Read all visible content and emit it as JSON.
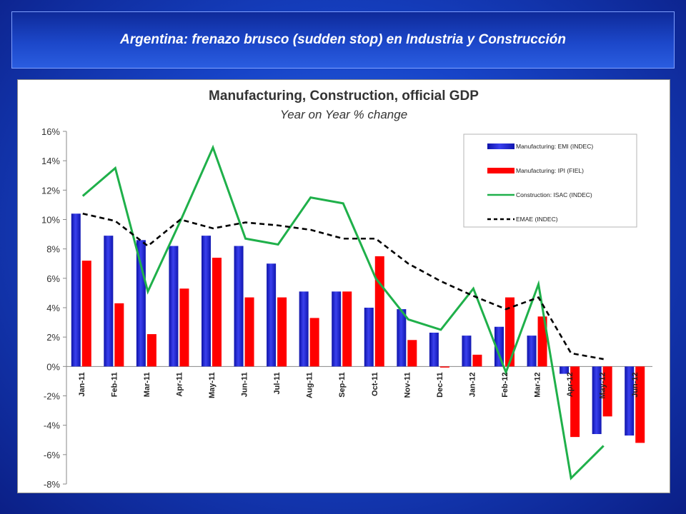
{
  "banner": {
    "title": "Argentina: frenazo brusco (sudden stop) en Industria y Construcción"
  },
  "chart_data": {
    "type": "bar",
    "title": "Manufacturing, Construction, official GDP",
    "subtitle": "Year on Year % change",
    "categories": [
      "Jan-11",
      "Feb-11",
      "Mar-11",
      "Apr-11",
      "May-11",
      "Jun-11",
      "Jul-11",
      "Aug-11",
      "Sep-11",
      "Oct-11",
      "Nov-11",
      "Dec-11",
      "Jan-12",
      "Feb-12",
      "Mar-12",
      "Apr-12",
      "May-12",
      "Jun-12"
    ],
    "y_ticks": [
      "16%",
      "14%",
      "12%",
      "10%",
      "8%",
      "6%",
      "4%",
      "2%",
      "0%",
      "-2%",
      "-4%",
      "-6%",
      "-8%"
    ],
    "ylim": [
      -8,
      16
    ],
    "legend_position": "top-right",
    "series": [
      {
        "name": "Manufacturing: EMI (INDEC)",
        "kind": "bar",
        "color": "#1f25c9",
        "values": [
          10.4,
          8.9,
          8.6,
          8.2,
          8.9,
          8.2,
          7.0,
          5.1,
          5.1,
          4.0,
          3.9,
          2.3,
          2.1,
          2.7,
          2.1,
          -0.5,
          -4.6,
          -4.7
        ]
      },
      {
        "name": "Manufacturing: IPI (FIEL)",
        "kind": "bar",
        "color": "#ff0000",
        "values": [
          7.2,
          4.3,
          2.2,
          5.3,
          7.4,
          4.7,
          4.7,
          3.3,
          5.1,
          7.5,
          1.8,
          0.0,
          0.8,
          4.7,
          3.4,
          -4.8,
          -3.4,
          -5.2
        ]
      },
      {
        "name": "Construction: ISAC (INDEC)",
        "kind": "line",
        "color": "#1fb04a",
        "values": [
          11.6,
          13.5,
          5.1,
          9.9,
          14.9,
          8.7,
          8.3,
          11.5,
          11.1,
          6.0,
          3.2,
          2.5,
          5.3,
          -0.4,
          5.6,
          -7.6,
          -5.4,
          null
        ]
      },
      {
        "name": "EMAE (INDEC)",
        "kind": "dashed-line",
        "color": "#000000",
        "values": [
          10.4,
          9.9,
          8.2,
          10.0,
          9.4,
          9.8,
          9.6,
          9.3,
          8.7,
          8.7,
          7.0,
          5.8,
          4.8,
          3.9,
          4.7,
          0.9,
          0.5,
          null
        ]
      }
    ]
  }
}
